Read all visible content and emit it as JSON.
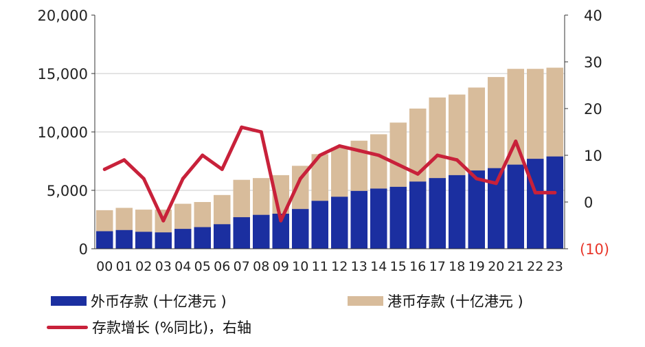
{
  "chart_data": {
    "type": "bar+line",
    "x": [
      "00",
      "01",
      "02",
      "03",
      "04",
      "05",
      "06",
      "07",
      "08",
      "09",
      "10",
      "11",
      "12",
      "13",
      "14",
      "15",
      "16",
      "17",
      "18",
      "19",
      "20",
      "21",
      "22",
      "23"
    ],
    "ylim_left": [
      0,
      20000
    ],
    "ylim_right": [
      -10,
      40
    ],
    "yticks_left": [
      "0",
      "5,000",
      "10,000",
      "15,000",
      "20,000"
    ],
    "yticks_right": [
      "(10)",
      "0",
      "10",
      "20",
      "30",
      "40"
    ],
    "series": [
      {
        "name": "外币存款 (十亿港元 )",
        "kind": "bar",
        "axis": "left",
        "color": "#1b2fa0",
        "values": [
          1500,
          1600,
          1450,
          1400,
          1700,
          1850,
          2100,
          2700,
          2900,
          3000,
          3400,
          4100,
          4450,
          4950,
          5150,
          5300,
          5750,
          6050,
          6300,
          6700,
          6900,
          7200,
          7700,
          7900
        ]
      },
      {
        "name": "港币存款 (十亿港元 )",
        "kind": "bar",
        "axis": "left",
        "color": "#d8bc9b",
        "values": [
          3300,
          3500,
          3350,
          3350,
          3850,
          4000,
          4600,
          5900,
          6050,
          6300,
          7100,
          8100,
          8650,
          9250,
          9800,
          10800,
          12000,
          12950,
          13200,
          13800,
          14700,
          15400,
          15400,
          15500
        ]
      },
      {
        "name": "存款增长 (%同比)，右轴",
        "kind": "line",
        "axis": "right",
        "color": "#c8213a",
        "values": [
          7,
          9,
          5,
          -4,
          5,
          10,
          7,
          16,
          15,
          -4,
          5,
          10,
          12,
          11,
          10,
          8,
          6,
          10,
          9,
          5,
          4,
          13,
          2,
          2
        ]
      }
    ]
  }
}
